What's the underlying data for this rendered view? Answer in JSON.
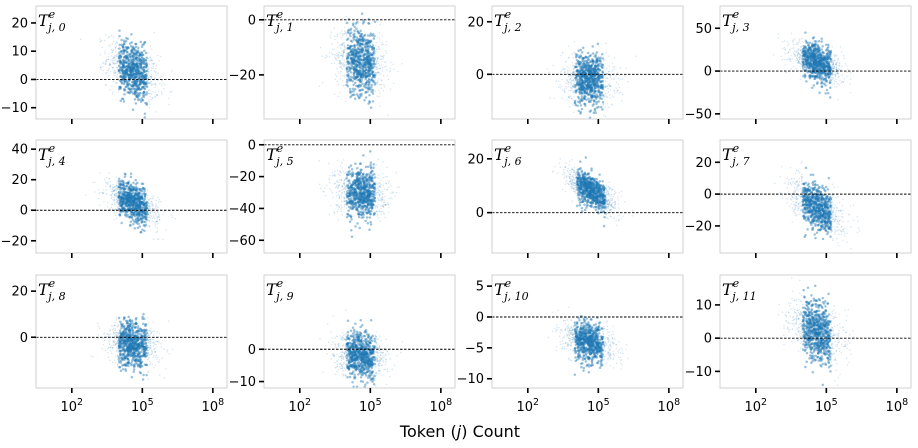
{
  "chart_data": {
    "type": "scatter",
    "xlabel": "Token (j) Count",
    "xlabel_parts": {
      "pre": "Token (",
      "var": "j",
      "post": ") Count"
    },
    "x_scale": "log",
    "xlim": [
      3,
      400000000
    ],
    "x_ticks": [
      100,
      100000,
      100000000
    ],
    "x_tick_labels": [
      {
        "base": "10",
        "exp": "2"
      },
      {
        "base": "10",
        "exp": "5"
      },
      {
        "base": "10",
        "exp": "8"
      }
    ],
    "point_color": "#1f77b4",
    "reference_line": 0,
    "panels": [
      {
        "title_sub": "j, 0",
        "title": "T^e_{j,0}",
        "ylim": [
          -14,
          26
        ],
        "yticks": [
          -10,
          0,
          10,
          20
        ],
        "y_tick_labels": [
          "−10",
          "0",
          "10",
          "20"
        ],
        "center_log10": 4.6,
        "center_y": 3,
        "spread_y": 5,
        "slope": -4.0
      },
      {
        "title_sub": "j, 1",
        "title": "T^e_{j,1}",
        "ylim": [
          -36,
          5
        ],
        "yticks": [
          -20,
          0
        ],
        "y_tick_labels": [
          "−20",
          "0"
        ],
        "center_log10": 4.6,
        "center_y": -15,
        "spread_y": 6,
        "slope": -2.0
      },
      {
        "title_sub": "j, 2",
        "title": "T^e_{j,2}",
        "ylim": [
          -17,
          26
        ],
        "yticks": [
          0,
          20
        ],
        "y_tick_labels": [
          "0",
          "20"
        ],
        "center_log10": 4.6,
        "center_y": -2,
        "spread_y": 5,
        "slope": -1.0
      },
      {
        "title_sub": "j, 3",
        "title": "T^e_{j,3}",
        "ylim": [
          -56,
          76
        ],
        "yticks": [
          -50,
          0,
          50
        ],
        "y_tick_labels": [
          "−50",
          "0",
          "50"
        ],
        "center_log10": 4.6,
        "center_y": 10,
        "spread_y": 10,
        "slope": -10.0
      },
      {
        "title_sub": "j, 4",
        "title": "T^e_{j,4}",
        "ylim": [
          -28,
          46
        ],
        "yticks": [
          -20,
          0,
          20,
          40
        ],
        "y_tick_labels": [
          "−20",
          "0",
          "20",
          "40"
        ],
        "center_log10": 4.6,
        "center_y": 5,
        "spread_y": 6,
        "slope": -7.0
      },
      {
        "title_sub": "j, 5",
        "title": "T^e_{j,5}",
        "ylim": [
          -68,
          3
        ],
        "yticks": [
          -60,
          -40,
          -20,
          0
        ],
        "y_tick_labels": [
          "−60",
          "−40",
          "−20",
          "0"
        ],
        "center_log10": 4.6,
        "center_y": -30,
        "spread_y": 8,
        "slope": -1.5
      },
      {
        "title_sub": "j, 6",
        "title": "T^e_{j,6}",
        "ylim": [
          -15,
          27
        ],
        "yticks": [
          0,
          20
        ],
        "y_tick_labels": [
          "0",
          "20"
        ],
        "center_log10": 4.7,
        "center_y": 8,
        "spread_y": 3,
        "slope": -5.0
      },
      {
        "title_sub": "j, 7",
        "title": "T^e_{j,7}",
        "ylim": [
          -37,
          34
        ],
        "yticks": [
          -20,
          0,
          20
        ],
        "y_tick_labels": [
          "−20",
          "0",
          "20"
        ],
        "center_log10": 4.6,
        "center_y": -8,
        "spread_y": 7,
        "slope": -8.0
      },
      {
        "title_sub": "j, 8",
        "title": "T^e_{j,8}",
        "ylim": [
          -22,
          27
        ],
        "yticks": [
          0,
          20
        ],
        "y_tick_labels": [
          "0",
          "20"
        ],
        "center_log10": 4.6,
        "center_y": -3,
        "spread_y": 5,
        "slope": -1.5
      },
      {
        "title_sub": "j, 9",
        "title": "T^e_{j,9}",
        "ylim": [
          -12,
          23
        ],
        "yticks": [
          -10,
          0
        ],
        "y_tick_labels": [
          "−10",
          "0"
        ],
        "center_log10": 4.6,
        "center_y": -2,
        "spread_y": 3.5,
        "slope": -1.0
      },
      {
        "title_sub": "j, 10",
        "title": "T^e_{j,10}",
        "ylim": [
          -11.5,
          6.8
        ],
        "yticks": [
          -10,
          -5,
          0,
          5
        ],
        "y_tick_labels": [
          "−10",
          "−5",
          "0",
          "5"
        ],
        "center_log10": 4.6,
        "center_y": -4,
        "spread_y": 1.6,
        "slope": -1.0
      },
      {
        "title_sub": "j, 11",
        "title": "T^e_{j,11}",
        "ylim": [
          -15,
          19
        ],
        "yticks": [
          -10,
          0,
          10
        ],
        "y_tick_labels": [
          "−10",
          "0",
          "10"
        ],
        "center_log10": 4.6,
        "center_y": 2,
        "spread_y": 4.5,
        "slope": -3.0
      }
    ]
  }
}
